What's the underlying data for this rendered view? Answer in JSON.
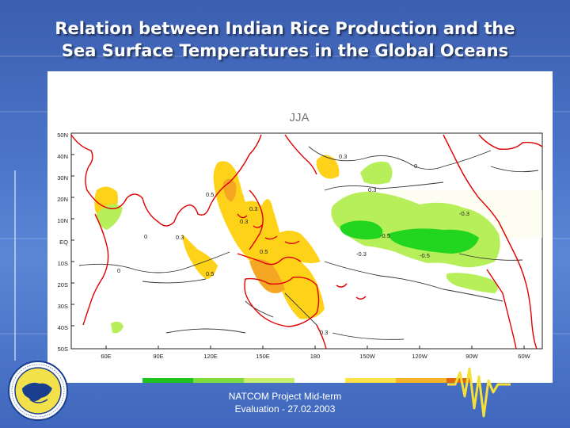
{
  "slide": {
    "title_line1": "Relation between Indian Rice Production and the",
    "title_line2": "Sea Surface Temperatures in the Global Oceans",
    "footer_line1": "NATCOM Project Mid-term",
    "footer_line2": "Evaluation - 27.02.2003"
  },
  "map": {
    "season": "JJA",
    "lat_labels": [
      "50N",
      "40N",
      "30N",
      "20N",
      "10N",
      "EQ",
      "10S",
      "20S",
      "30S",
      "40S",
      "50S"
    ],
    "lon_labels": [
      "60E",
      "90E",
      "120E",
      "150E",
      "180",
      "150W",
      "120W",
      "90W",
      "60W"
    ],
    "contour_labels": [
      "0.3",
      "0",
      "0.3",
      "0.5",
      "0.3",
      "0.3",
      "0",
      "0.3",
      "0.5",
      "0.5",
      "-0.3",
      "-0.5",
      "-0.5",
      "-0.3",
      "0",
      "0.3"
    ],
    "colors": {
      "pos_weak": "#ffd21a",
      "pos_strong": "#f5a623",
      "neg_weak": "#b6ef5a",
      "neg_strong": "#22d61f",
      "coast": "#e00000",
      "contour": "#333333"
    },
    "colorbar": [
      "#1ec31e",
      "#7ddb3c",
      "#c8ef6b",
      "#ffffff",
      "#ffe14a",
      "#f5b429",
      "#e06a10",
      "#c81e1e"
    ]
  }
}
